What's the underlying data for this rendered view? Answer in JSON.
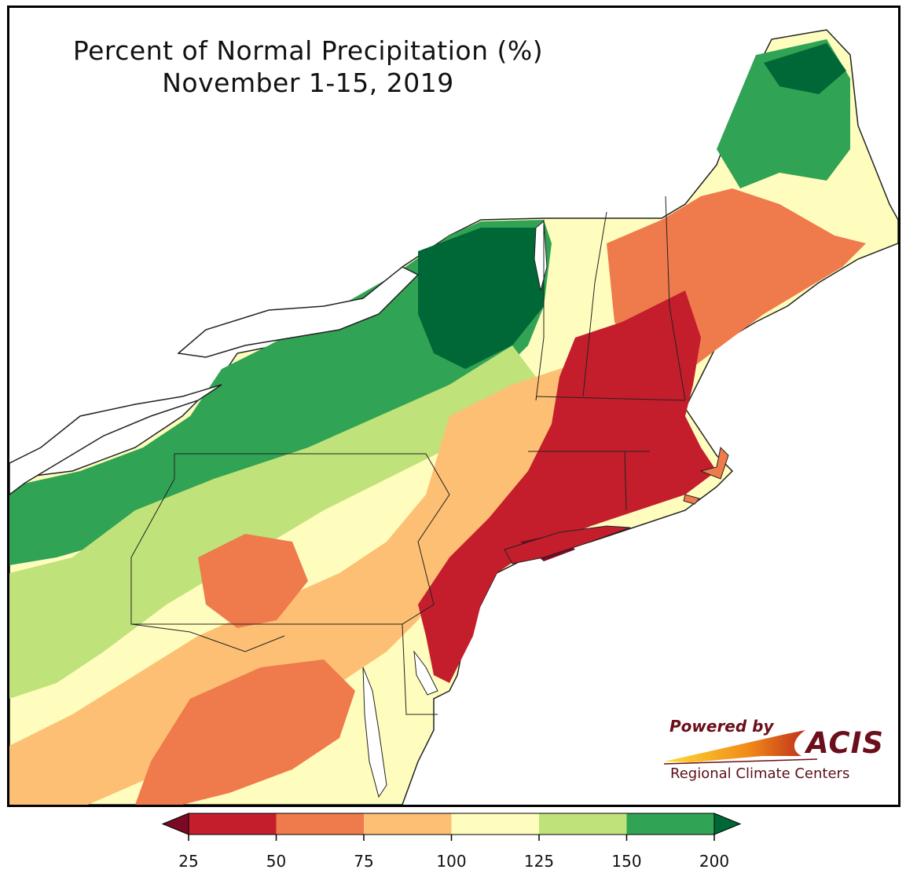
{
  "title": {
    "line1": "Percent of Normal Precipitation (%)",
    "line2": "November 1-15, 2019"
  },
  "logo": {
    "powered_by": "Powered by",
    "name": "ACIS",
    "subtitle": "Regional Climate Centers"
  },
  "legend": {
    "ticks": [
      "25",
      "50",
      "75",
      "100",
      "125",
      "150",
      "200"
    ],
    "bins": [
      {
        "range": "below 25",
        "color": "#7a0a24"
      },
      {
        "range": "25-50",
        "color": "#c41e2d"
      },
      {
        "range": "50-75",
        "color": "#ef7a4c"
      },
      {
        "range": "75-100",
        "color": "#fdbf73"
      },
      {
        "range": "100-125",
        "color": "#fefdbd"
      },
      {
        "range": "125-150",
        "color": "#c0e27a"
      },
      {
        "range": "150-200",
        "color": "#31a354"
      },
      {
        "range": "above 200",
        "color": "#006837"
      }
    ]
  },
  "map": {
    "region": "Northeast US",
    "background_color": "#ffffff",
    "water_color": "#ffffff"
  }
}
